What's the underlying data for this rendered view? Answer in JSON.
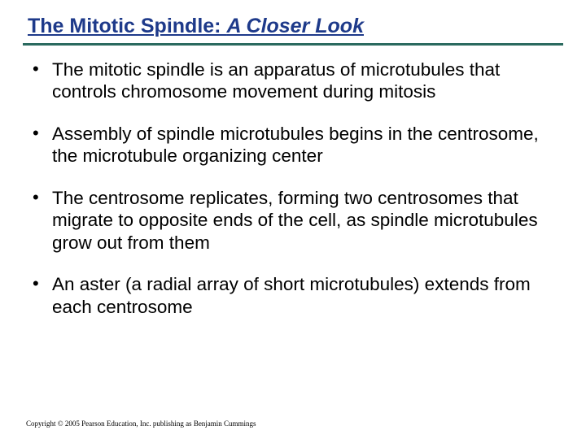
{
  "slide": {
    "title_part_a": "The Mitotic Spindle: ",
    "title_part_b": "A Closer Look",
    "title_color": "#1e3a8a",
    "title_fontsize": 25,
    "divider_color": "#2b6a5f",
    "bullets": [
      "The mitotic spindle is an apparatus of microtubules that controls chromosome movement during mitosis",
      "Assembly of spindle microtubules begins in the centrosome, the microtubule organizing center",
      "The centrosome replicates, forming two centrosomes that migrate to opposite ends of the cell, as spindle microtubules grow out from them",
      "An aster (a radial array of short microtubules) extends from each centrosome"
    ],
    "bullet_fontsize": 22.5,
    "bullet_color": "#000000",
    "background_color": "#ffffff",
    "footer": "Copyright © 2005 Pearson Education, Inc. publishing as Benjamin Cummings"
  }
}
